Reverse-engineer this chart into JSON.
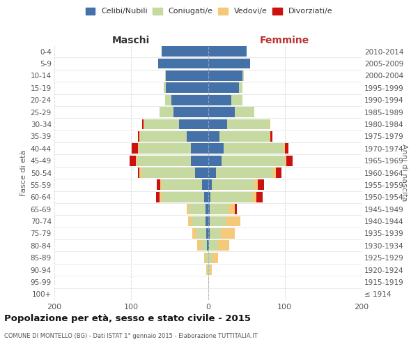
{
  "age_groups": [
    "0-4",
    "5-9",
    "10-14",
    "15-19",
    "20-24",
    "25-29",
    "30-34",
    "35-39",
    "40-44",
    "45-49",
    "50-54",
    "55-59",
    "60-64",
    "65-69",
    "70-74",
    "75-79",
    "80-84",
    "85-89",
    "90-94",
    "95-99",
    "100+"
  ],
  "birth_years": [
    "2010-2014",
    "2005-2009",
    "2000-2004",
    "1995-1999",
    "1990-1994",
    "1985-1989",
    "1980-1984",
    "1975-1979",
    "1970-1974",
    "1965-1969",
    "1960-1964",
    "1955-1959",
    "1950-1954",
    "1945-1949",
    "1940-1944",
    "1935-1939",
    "1930-1934",
    "1925-1929",
    "1920-1924",
    "1915-1919",
    "≤ 1914"
  ],
  "maschi": {
    "celibi": [
      60,
      65,
      55,
      55,
      48,
      45,
      38,
      28,
      22,
      22,
      17,
      8,
      5,
      3,
      3,
      2,
      1,
      0,
      0,
      0,
      0
    ],
    "coniugati": [
      0,
      0,
      1,
      3,
      8,
      18,
      45,
      60,
      68,
      70,
      70,
      52,
      55,
      22,
      18,
      13,
      8,
      3,
      1,
      0,
      0
    ],
    "vedovi": [
      0,
      0,
      0,
      0,
      0,
      0,
      1,
      1,
      1,
      2,
      2,
      2,
      3,
      3,
      5,
      5,
      5,
      2,
      1,
      0,
      0
    ],
    "divorziati": [
      0,
      0,
      0,
      0,
      0,
      0,
      2,
      2,
      8,
      8,
      2,
      5,
      5,
      0,
      0,
      0,
      0,
      0,
      0,
      0,
      0
    ]
  },
  "femmine": {
    "nubili": [
      50,
      55,
      45,
      40,
      30,
      35,
      25,
      15,
      20,
      18,
      10,
      5,
      3,
      2,
      2,
      2,
      1,
      0,
      0,
      0,
      0
    ],
    "coniugate": [
      0,
      0,
      2,
      5,
      15,
      25,
      55,
      65,
      78,
      82,
      75,
      55,
      55,
      25,
      22,
      15,
      12,
      5,
      2,
      0,
      0
    ],
    "vedove": [
      0,
      0,
      0,
      0,
      0,
      0,
      1,
      1,
      2,
      2,
      3,
      5,
      5,
      8,
      18,
      18,
      15,
      8,
      3,
      1,
      0
    ],
    "divorziate": [
      0,
      0,
      0,
      0,
      0,
      0,
      0,
      3,
      5,
      8,
      8,
      8,
      8,
      3,
      0,
      0,
      0,
      0,
      0,
      0,
      0
    ]
  },
  "colors": {
    "celibi_nubili": "#4472a8",
    "coniugati": "#c5d9a0",
    "vedovi": "#f5c97a",
    "divorziati": "#cc1111"
  },
  "xlim": 200,
  "title": "Popolazione per età, sesso e stato civile - 2015",
  "subtitle": "COMUNE DI MONTELLO (BG) - Dati ISTAT 1° gennaio 2015 - Elaborazione TUTTITALIA.IT",
  "xlabel_left": "Maschi",
  "xlabel_right": "Femmine",
  "ylabel_left": "Fasce di età",
  "ylabel_right": "Anni di nascita",
  "legend_labels": [
    "Celibi/Nubili",
    "Coniugati/e",
    "Vedovi/e",
    "Divorziati/e"
  ],
  "background_color": "#ffffff",
  "grid_color": "#cccccc"
}
